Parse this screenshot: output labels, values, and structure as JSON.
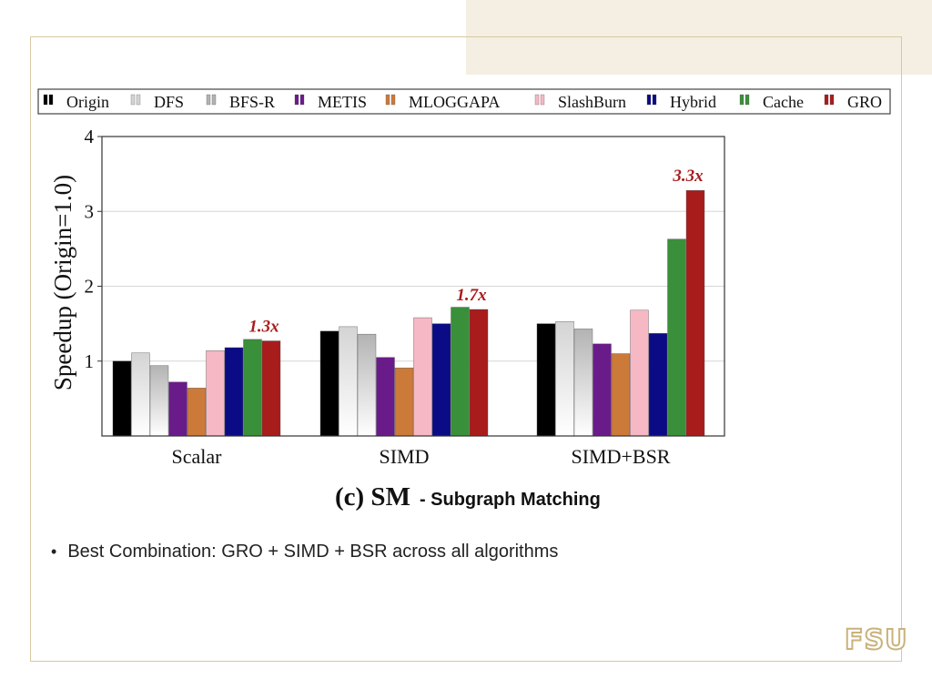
{
  "caption": {
    "label": "(c) SM",
    "subtitle": "- Subgraph Matching"
  },
  "bullet": {
    "text": "Best Combination: GRO + SIMD + BSR across all algorithms"
  },
  "logo": {
    "text": "FSU"
  },
  "chart_data": {
    "type": "bar",
    "title": "",
    "xlabel": "",
    "ylabel": "Speedup (Origin=1.0)",
    "ylim": [
      0,
      4
    ],
    "yticks": [
      1,
      2,
      3,
      4
    ],
    "grid": true,
    "legend_position": "top",
    "categories": [
      "Scalar",
      "SIMD",
      "SIMD+BSR"
    ],
    "series": [
      {
        "name": "Origin",
        "color": "#000000",
        "values": [
          1.0,
          1.4,
          1.5
        ]
      },
      {
        "name": "DFS",
        "color": "#d4d4d4",
        "values": [
          1.11,
          1.46,
          1.53
        ]
      },
      {
        "name": "BFS-R",
        "color": "#b3b3b3",
        "values": [
          0.94,
          1.36,
          1.43
        ]
      },
      {
        "name": "METIS",
        "color": "#6a1b8a",
        "values": [
          0.72,
          1.05,
          1.23
        ]
      },
      {
        "name": "MLOGGAPA",
        "color": "#cc7a3a",
        "values": [
          0.64,
          0.91,
          1.1
        ]
      },
      {
        "name": "SlashBurn",
        "color": "#f5b8c4",
        "values": [
          1.14,
          1.58,
          1.68
        ]
      },
      {
        "name": "Hybrid",
        "color": "#0b0b85",
        "values": [
          1.18,
          1.5,
          1.37
        ]
      },
      {
        "name": "Cache",
        "color": "#3a8f3a",
        "values": [
          1.29,
          1.72,
          2.63
        ]
      },
      {
        "name": "GRO",
        "color": "#a81c1c",
        "values": [
          1.27,
          1.69,
          3.28
        ]
      }
    ],
    "annotations": [
      {
        "category": "Scalar",
        "series": "GRO",
        "text": "1.3x",
        "color": "#a81c1c"
      },
      {
        "category": "SIMD",
        "series": "GRO",
        "text": "1.7x",
        "color": "#a81c1c"
      },
      {
        "category": "SIMD+BSR",
        "series": "GRO",
        "text": "3.3x",
        "color": "#a81c1c"
      }
    ]
  }
}
